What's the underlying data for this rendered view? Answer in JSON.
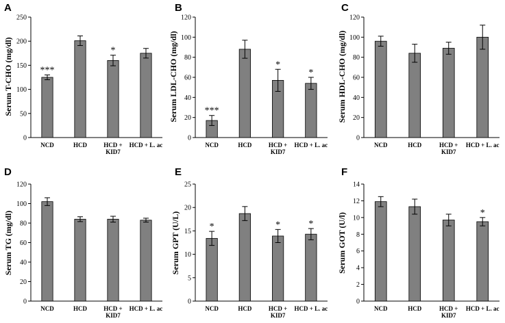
{
  "chart_data": [
    {
      "type": "bar",
      "panel": "A",
      "ylabel": "Serum T-CHO (mg/dl)",
      "ylim": [
        0,
        250
      ],
      "yticks": [
        "0",
        "50",
        "100",
        "150",
        "200",
        "250"
      ],
      "categories": [
        "NCD",
        "HCD",
        "HCD + KID7",
        "HCD + L. ac"
      ],
      "values": [
        125,
        201,
        160,
        175
      ],
      "errors": [
        5,
        10,
        11,
        10
      ],
      "significance": [
        "***",
        "",
        "*",
        ""
      ]
    },
    {
      "type": "bar",
      "panel": "B",
      "ylabel": "Serum LDL-CHO (mg/dl)",
      "ylim": [
        0,
        120
      ],
      "yticks": [
        "0",
        "20",
        "40",
        "60",
        "80",
        "100",
        "120"
      ],
      "categories": [
        "NCD",
        "HCD",
        "HCD + KID7",
        "HCD + L. ac"
      ],
      "values": [
        17,
        88,
        57,
        54
      ],
      "errors": [
        5,
        9,
        11,
        6
      ],
      "significance": [
        "***",
        "",
        "*",
        "*"
      ]
    },
    {
      "type": "bar",
      "panel": "C",
      "ylabel": "Serum HDL-CHO (mg/dl)",
      "ylim": [
        0,
        120
      ],
      "yticks": [
        "0",
        "20",
        "40",
        "60",
        "80",
        "100",
        "120"
      ],
      "categories": [
        "NCD",
        "HCD",
        "HCD + KID7",
        "HCD + L. ac"
      ],
      "values": [
        96,
        84,
        89,
        100
      ],
      "errors": [
        5,
        9,
        6,
        12
      ],
      "significance": [
        "",
        "",
        "",
        ""
      ]
    },
    {
      "type": "bar",
      "panel": "D",
      "ylabel": "Serum TG (mg/dl)",
      "ylim": [
        0,
        120
      ],
      "yticks": [
        "0",
        "20",
        "40",
        "60",
        "80",
        "100",
        "120"
      ],
      "categories": [
        "NCD",
        "HCD",
        "HCD + KID7",
        "HCD + L. ac"
      ],
      "values": [
        102,
        84,
        84,
        83
      ],
      "errors": [
        4,
        2.5,
        3,
        2
      ],
      "significance": [
        "",
        "",
        "",
        ""
      ]
    },
    {
      "type": "bar",
      "panel": "E",
      "ylabel": "Serum GPT (U/L)",
      "ylim": [
        0,
        25
      ],
      "yticks": [
        "0",
        "5",
        "10",
        "15",
        "20",
        "25"
      ],
      "categories": [
        "NCD",
        "HCD",
        "HCD + KID7",
        "HCD + L. ac"
      ],
      "values": [
        13.4,
        18.7,
        13.9,
        14.3
      ],
      "errors": [
        1.5,
        1.5,
        1.4,
        1.2
      ],
      "significance": [
        "*",
        "",
        "*",
        "*"
      ]
    },
    {
      "type": "bar",
      "panel": "F",
      "ylabel": "Serum GOT (U/l)",
      "ylim": [
        0,
        14
      ],
      "yticks": [
        "0",
        "2",
        "4",
        "6",
        "8",
        "10",
        "12",
        "14"
      ],
      "categories": [
        "NCD",
        "HCD",
        "HCD + KID7",
        "HCD + L. ac"
      ],
      "values": [
        11.9,
        11.3,
        9.7,
        9.5
      ],
      "errors": [
        0.6,
        0.9,
        0.7,
        0.5
      ],
      "significance": [
        "",
        "",
        "",
        "*"
      ]
    }
  ],
  "colors": {
    "bar_fill": "#808080",
    "bar_stroke": "#000000",
    "axis": "#000000"
  }
}
